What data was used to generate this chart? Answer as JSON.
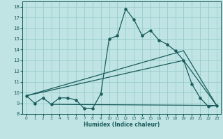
{
  "xlabel": "Humidex (Indice chaleur)",
  "xlim": [
    -0.5,
    23.5
  ],
  "ylim": [
    8,
    18.5
  ],
  "yticks": [
    8,
    9,
    10,
    11,
    12,
    13,
    14,
    15,
    16,
    17,
    18
  ],
  "xticks": [
    0,
    1,
    2,
    3,
    4,
    5,
    6,
    7,
    8,
    9,
    10,
    11,
    12,
    13,
    14,
    15,
    16,
    17,
    18,
    19,
    20,
    21,
    22,
    23
  ],
  "bg_color": "#c0e4e4",
  "grid_color": "#98cccc",
  "line_color": "#1a5c5c",
  "line1_x": [
    0,
    1,
    2,
    3,
    4,
    5,
    6,
    7,
    8,
    9,
    10,
    11,
    12,
    13,
    14,
    15,
    16,
    17,
    18,
    19,
    20,
    21,
    22,
    23
  ],
  "line1_y": [
    9.7,
    9.0,
    9.5,
    8.9,
    9.5,
    9.5,
    9.3,
    8.5,
    8.5,
    9.9,
    15.0,
    15.3,
    17.8,
    16.8,
    15.3,
    15.8,
    14.9,
    14.5,
    13.9,
    13.0,
    10.8,
    9.5,
    8.7,
    8.8
  ],
  "line2_x": [
    0,
    19,
    23
  ],
  "line2_y": [
    9.7,
    13.9,
    8.8
  ],
  "line3_x": [
    0,
    19,
    23
  ],
  "line3_y": [
    9.7,
    13.0,
    8.8
  ],
  "line4_x": [
    3,
    23
  ],
  "line4_y": [
    8.9,
    8.8
  ]
}
